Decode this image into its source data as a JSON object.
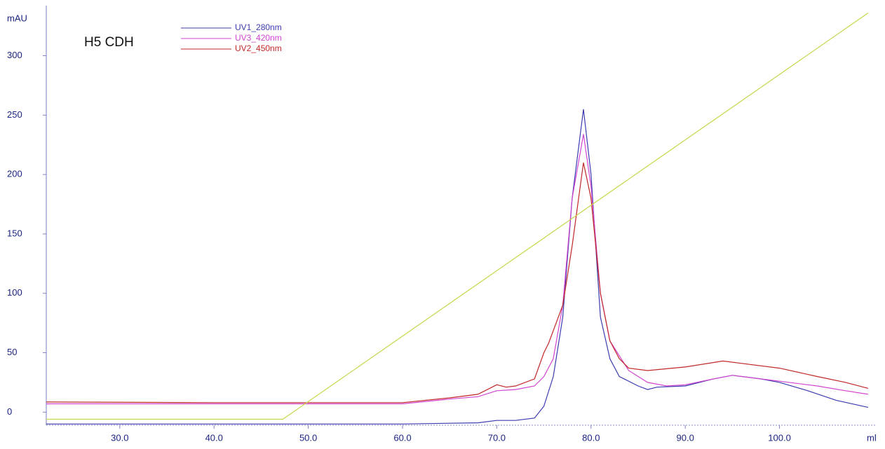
{
  "chart_data": {
    "type": "line",
    "title": "H5 CDH",
    "y_label": "mAU",
    "x_label": "ml",
    "xlim": [
      22.2,
      110.3
    ],
    "ylim": [
      -11,
      341
    ],
    "xticks": [
      {
        "value": 30,
        "label": "30.0"
      },
      {
        "value": 40,
        "label": "40.0"
      },
      {
        "value": 50,
        "label": "50.0"
      },
      {
        "value": 60,
        "label": "60.0"
      },
      {
        "value": 70,
        "label": "70.0"
      },
      {
        "value": 80,
        "label": "80.0"
      },
      {
        "value": 90,
        "label": "90.0"
      },
      {
        "value": 100,
        "label": "100.0"
      }
    ],
    "yticks": [
      0,
      50,
      100,
      150,
      200,
      250,
      300
    ],
    "series": [
      {
        "name": "UV1_280nm",
        "color": "#3b3bb0",
        "x": [
          22.2,
          40,
          60,
          68,
          70,
          72,
          74,
          75,
          76,
          77,
          78,
          79.2,
          80,
          81,
          82,
          83,
          85,
          86,
          87,
          90,
          93,
          95,
          98,
          100,
          103,
          106,
          109.4
        ],
        "values": [
          -10,
          -10,
          -10,
          -9,
          -7,
          -7,
          -5,
          5,
          30,
          80,
          180,
          255,
          200,
          80,
          45,
          30,
          22,
          19,
          21,
          22,
          28,
          31,
          28,
          25,
          18,
          10,
          4
        ]
      },
      {
        "name": "UV3_420nm",
        "color": "#d045d0",
        "x": [
          22.2,
          40,
          60,
          65,
          68,
          70,
          72,
          74,
          75,
          76,
          77,
          78,
          79.2,
          80,
          81,
          82,
          84,
          86,
          88,
          90,
          93,
          95,
          98,
          100,
          104,
          107,
          109.4
        ],
        "values": [
          7,
          7,
          7,
          11,
          13,
          18,
          19,
          22,
          30,
          45,
          90,
          180,
          234,
          190,
          100,
          60,
          35,
          25,
          22,
          23,
          28,
          31,
          28,
          26,
          22,
          18,
          15
        ]
      },
      {
        "name": "UV2_450nm",
        "color": "#c02828",
        "x": [
          22.2,
          40,
          60,
          65,
          68,
          70,
          71,
          72,
          74,
          75,
          75.5,
          77,
          78,
          79.2,
          80,
          81,
          82,
          83,
          84,
          86,
          90,
          94,
          96,
          100,
          104,
          107,
          109.4
        ],
        "values": [
          8.5,
          8,
          8,
          12,
          15,
          23,
          21,
          22,
          28,
          50,
          58,
          90,
          140,
          210,
          180,
          100,
          60,
          45,
          37,
          35,
          38,
          43,
          41,
          37,
          30,
          25,
          20
        ]
      },
      {
        "color": "#c8d64b",
        "x": [
          22.2,
          47.3,
          109.4
        ],
        "values": [
          -6,
          -6,
          336
        ]
      }
    ]
  }
}
